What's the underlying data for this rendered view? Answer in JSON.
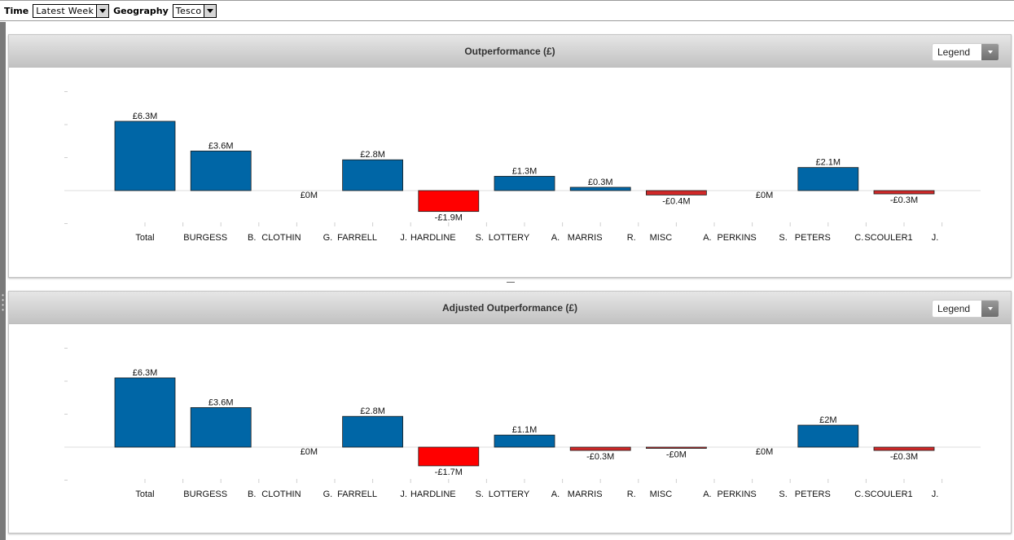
{
  "toolbar": {
    "time_label": "Time",
    "time_value": "Latest Week",
    "geography_label": "Geography",
    "geography_value": "Tesco"
  },
  "panels": [
    {
      "title": "Outperformance (£)",
      "legend_label": "Legend"
    },
    {
      "title": "Adjusted Outperformance (£)",
      "legend_label": "Legend"
    }
  ],
  "colors": {
    "positive": "#0066a6",
    "negative": "#ff0000",
    "negative_small": "#d02828"
  },
  "chart_data": [
    {
      "type": "bar",
      "title": "Outperformance (£)",
      "categories": [
        [
          "Total",
          ""
        ],
        [
          "BURGESS",
          "B."
        ],
        [
          "CLOTHIN",
          "G."
        ],
        [
          "FARRELL",
          "J."
        ],
        [
          "HARDLINE",
          "S."
        ],
        [
          "LOTTERY",
          "A."
        ],
        [
          "MARRIS",
          "R."
        ],
        [
          "MISC",
          "A."
        ],
        [
          "PERKINS",
          "S."
        ],
        [
          "PETERS",
          "C."
        ],
        [
          "SCOULER1",
          "J."
        ]
      ],
      "values": [
        6.3,
        3.6,
        0,
        2.8,
        -1.9,
        1.3,
        0.3,
        -0.4,
        0,
        2.1,
        -0.3
      ],
      "data_labels": [
        "£6.3M",
        "£3.6M",
        "£0M",
        "£2.8M",
        "-£1.9M",
        "£1.3M",
        "£0.3M",
        "-£0.4M",
        "£0M",
        "£2.1M",
        "-£0.3M"
      ],
      "unit": "£M",
      "ylim": [
        -3,
        9
      ]
    },
    {
      "type": "bar",
      "title": "Adjusted Outperformance (£)",
      "categories": [
        [
          "Total",
          ""
        ],
        [
          "BURGESS",
          "B."
        ],
        [
          "CLOTHIN",
          "G."
        ],
        [
          "FARRELL",
          "J."
        ],
        [
          "HARDLINE",
          "S."
        ],
        [
          "LOTTERY",
          "A."
        ],
        [
          "MARRIS",
          "R."
        ],
        [
          "MISC",
          "A."
        ],
        [
          "PERKINS",
          "S."
        ],
        [
          "PETERS",
          "C."
        ],
        [
          "SCOULER1",
          "J."
        ]
      ],
      "values": [
        6.3,
        3.6,
        0,
        2.8,
        -1.7,
        1.1,
        -0.3,
        -0.02,
        0,
        2.0,
        -0.3
      ],
      "data_labels": [
        "£6.3M",
        "£3.6M",
        "£0M",
        "£2.8M",
        "-£1.7M",
        "£1.1M",
        "-£0.3M",
        "-£0M",
        "£0M",
        "£2M",
        "-£0.3M"
      ],
      "unit": "£M",
      "ylim": [
        -3,
        9
      ]
    }
  ]
}
